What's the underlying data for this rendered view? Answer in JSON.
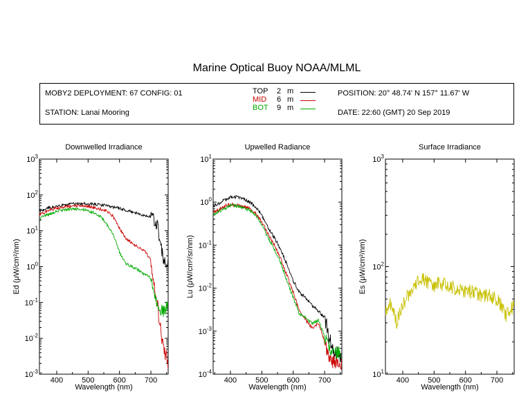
{
  "title": "Marine Optical Buoy NOAA/MLML",
  "info": {
    "deployment": "MOBY2 DEPLOYMENT: 67 CONFIG: 01",
    "station": "STATION: Lanai Mooring",
    "position": "POSITION: 20° 48.74' N   157° 11.67' W",
    "date": "DATE: 22:60 (GMT) 20 Sep 2019",
    "legend": [
      {
        "name": "TOP",
        "depth": "2",
        "unit": "m",
        "color": "#000000"
      },
      {
        "name": "MID",
        "depth": "6",
        "unit": "m",
        "color": "#cc0000"
      },
      {
        "name": "BOT",
        "depth": "9",
        "unit": "m",
        "color": "#00aa00"
      }
    ]
  },
  "colors": {
    "top": "#000000",
    "mid": "#cc0000",
    "bot": "#00aa00",
    "surface": "#c8c000"
  },
  "chart_data": [
    {
      "type": "line",
      "title": "Downwelled Irradiance",
      "xlabel": "Wavelength (nm)",
      "ylabel": "Ed  (μW/cm²/nm)",
      "xlim": [
        345,
        755
      ],
      "ylim": [
        0.001,
        1000
      ],
      "yscale": "log",
      "xticks": [
        400,
        500,
        600,
        700
      ],
      "yticks": [
        0.001,
        0.01,
        0.1,
        1,
        10,
        100,
        1000
      ],
      "yticklabels": [
        [
          "10",
          "-3"
        ],
        [
          "10",
          "-2"
        ],
        [
          "10",
          "-1"
        ],
        [
          "10",
          "0"
        ],
        [
          "10",
          "1"
        ],
        [
          "10",
          "2"
        ],
        [
          "10",
          "3"
        ]
      ],
      "series": [
        {
          "name": "TOP",
          "color": "#000000",
          "x": [
            345,
            360,
            380,
            400,
            420,
            440,
            460,
            480,
            500,
            520,
            540,
            560,
            580,
            600,
            620,
            640,
            660,
            680,
            700,
            710,
            720,
            730,
            740,
            750,
            755
          ],
          "y": [
            35,
            40,
            45,
            48,
            52,
            55,
            57,
            57,
            56,
            55,
            53,
            50,
            46,
            42,
            38,
            33,
            30,
            27,
            24,
            20,
            15,
            5,
            1.5,
            1.2,
            1.2
          ]
        },
        {
          "name": "MID",
          "color": "#cc0000",
          "x": [
            345,
            360,
            380,
            400,
            420,
            440,
            460,
            480,
            500,
            520,
            540,
            560,
            580,
            600,
            620,
            640,
            660,
            680,
            700,
            710,
            720,
            730,
            740,
            750,
            755
          ],
          "y": [
            28,
            32,
            38,
            42,
            46,
            48,
            50,
            50,
            48,
            44,
            40,
            35,
            25,
            12,
            6,
            4.5,
            3.5,
            2.8,
            1.5,
            0.3,
            0.1,
            0.02,
            0.005,
            0.003,
            0.002
          ]
        },
        {
          "name": "BOT",
          "color": "#00aa00",
          "x": [
            345,
            360,
            380,
            400,
            420,
            440,
            460,
            480,
            500,
            520,
            540,
            560,
            580,
            600,
            620,
            640,
            660,
            680,
            700,
            710,
            720,
            730,
            740,
            750,
            755
          ],
          "y": [
            22,
            26,
            30,
            35,
            38,
            40,
            40,
            40,
            36,
            32,
            25,
            15,
            8,
            2.5,
            1.2,
            1.0,
            0.8,
            0.6,
            0.5,
            0.2,
            0.1,
            0.06,
            0.06,
            0.07,
            0.07
          ]
        }
      ]
    },
    {
      "type": "line",
      "title": "Upwelled Radiance",
      "xlabel": "Wavelength (nm)",
      "ylabel": "Lu  (μW/cm²/sr/nm)",
      "xlim": [
        345,
        755
      ],
      "ylim": [
        0.0001,
        10
      ],
      "yscale": "log",
      "xticks": [
        400,
        500,
        600,
        700
      ],
      "yticks": [
        0.0001,
        0.001,
        0.01,
        0.1,
        1,
        10
      ],
      "yticklabels": [
        [
          "10",
          "-4"
        ],
        [
          "10",
          "-3"
        ],
        [
          "10",
          "-2"
        ],
        [
          "10",
          "-1"
        ],
        [
          "10",
          "0"
        ],
        [
          "10",
          "1"
        ]
      ],
      "series": [
        {
          "name": "TOP",
          "color": "#000000",
          "x": [
            345,
            360,
            380,
            400,
            420,
            440,
            460,
            480,
            500,
            520,
            540,
            560,
            580,
            600,
            620,
            640,
            660,
            680,
            700,
            710,
            720,
            730,
            740,
            750,
            755
          ],
          "y": [
            0.8,
            0.9,
            1.1,
            1.3,
            1.3,
            1.2,
            1.0,
            0.8,
            0.5,
            0.25,
            0.15,
            0.08,
            0.035,
            0.015,
            0.008,
            0.006,
            0.004,
            0.003,
            0.002,
            0.001,
            0.0005,
            0.0003,
            0.0003,
            0.0002,
            0.0002
          ]
        },
        {
          "name": "MID",
          "color": "#cc0000",
          "x": [
            345,
            360,
            380,
            400,
            420,
            440,
            460,
            480,
            500,
            520,
            540,
            560,
            580,
            600,
            620,
            640,
            660,
            680,
            700,
            710,
            720,
            730,
            740,
            750,
            755
          ],
          "y": [
            0.6,
            0.65,
            0.8,
            0.9,
            0.85,
            0.8,
            0.7,
            0.55,
            0.35,
            0.18,
            0.1,
            0.05,
            0.02,
            0.008,
            0.003,
            0.0018,
            0.0012,
            0.0015,
            0.0006,
            0.0003,
            0.0002,
            0.0002,
            0.0002,
            0.0002,
            0.0002
          ]
        },
        {
          "name": "BOT",
          "color": "#00aa00",
          "x": [
            345,
            360,
            380,
            400,
            420,
            440,
            460,
            480,
            500,
            520,
            540,
            560,
            580,
            600,
            620,
            640,
            660,
            680,
            700,
            710,
            720,
            730,
            740,
            750,
            755
          ],
          "y": [
            0.5,
            0.6,
            0.7,
            0.85,
            0.8,
            0.75,
            0.65,
            0.5,
            0.3,
            0.15,
            0.08,
            0.04,
            0.015,
            0.006,
            0.0025,
            0.002,
            0.0015,
            0.0018,
            0.0008,
            0.0004,
            0.0003,
            0.0003,
            0.0003,
            0.0003,
            0.0003
          ]
        }
      ]
    },
    {
      "type": "line",
      "title": "Surface Irradiance",
      "xlabel": "Wavelength (nm)",
      "ylabel": "Es  (μW/cm²/nm)",
      "xlim": [
        345,
        755
      ],
      "ylim": [
        10,
        1000
      ],
      "yscale": "log",
      "xticks": [
        400,
        500,
        600,
        700
      ],
      "yticks": [
        10,
        100,
        1000
      ],
      "yticklabels": [
        [
          "10",
          "1"
        ],
        [
          "10",
          "2"
        ],
        [
          "10",
          "3"
        ]
      ],
      "series": [
        {
          "name": "",
          "color": "#c8c000",
          "x": [
            345,
            360,
            380,
            400,
            420,
            440,
            460,
            480,
            500,
            520,
            540,
            560,
            580,
            600,
            620,
            640,
            660,
            680,
            700,
            710,
            720,
            730,
            740,
            750,
            755
          ],
          "y": [
            40,
            45,
            30,
            45,
            55,
            70,
            75,
            72,
            68,
            70,
            68,
            65,
            62,
            60,
            58,
            55,
            55,
            53,
            50,
            45,
            40,
            35,
            40,
            42,
            40
          ]
        }
      ]
    }
  ]
}
